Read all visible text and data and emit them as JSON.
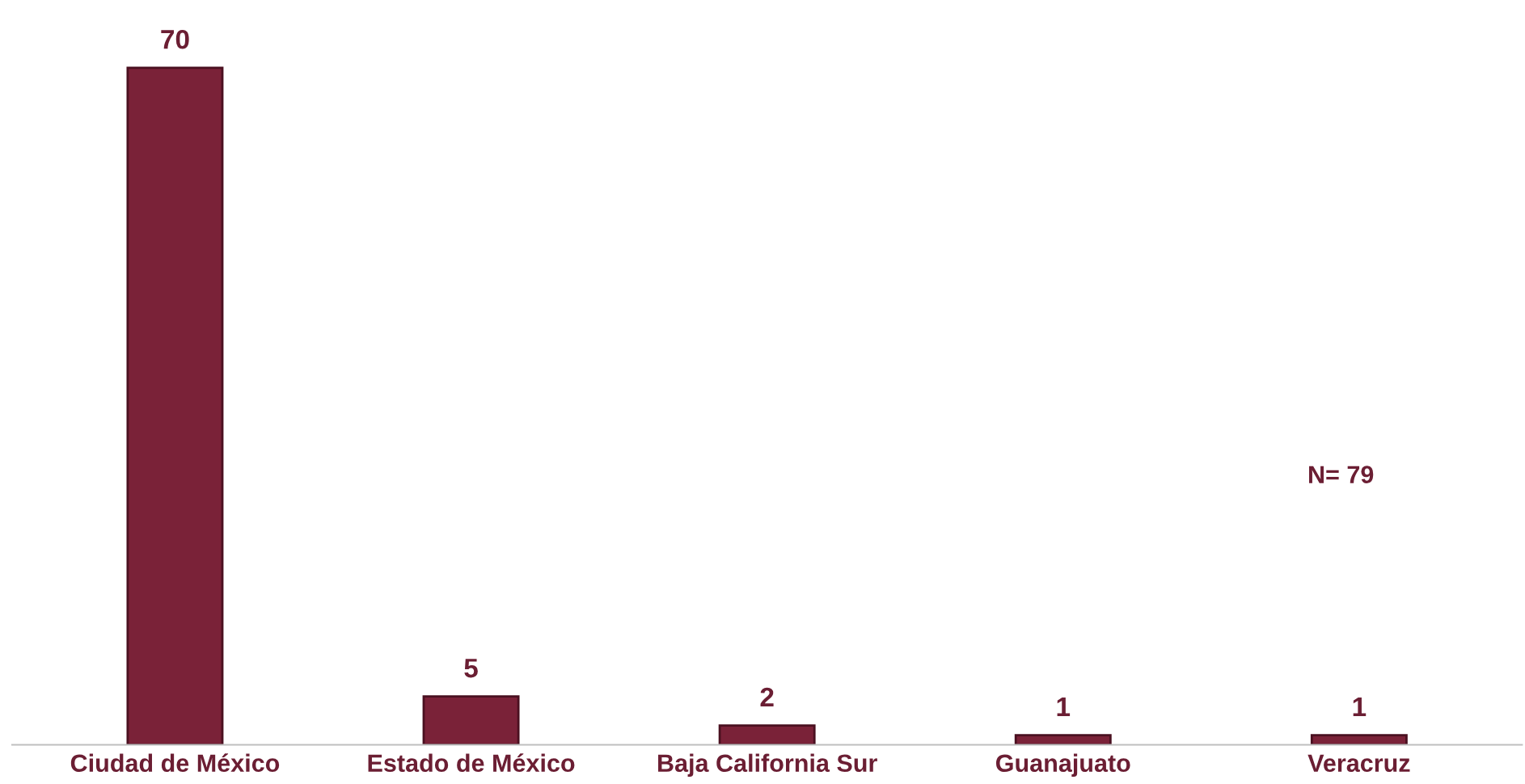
{
  "chart_data": {
    "type": "bar",
    "categories": [
      "Ciudad de México",
      "Estado de México",
      "Baja California Sur",
      "Guanajuato",
      "Veracruz"
    ],
    "values": [
      70,
      5,
      2,
      1,
      1
    ],
    "color": "#7a2238",
    "data_labels": true,
    "grid": false,
    "legend": false,
    "annotations": [
      "N= 79"
    ]
  }
}
